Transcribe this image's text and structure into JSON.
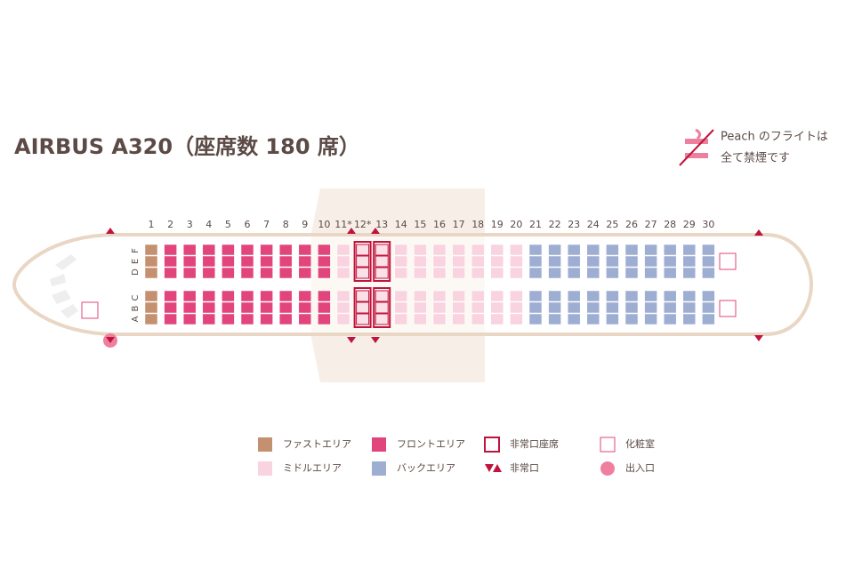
{
  "title": "AIRBUS A320（座席数 180 席）",
  "notice": [
    "Peach のフライトは",
    "全て禁煙です"
  ],
  "seat_letters": [
    "A",
    "B",
    "C",
    "D",
    "E",
    "F"
  ],
  "rows": [
    {
      "label": "1",
      "area": 0
    },
    {
      "label": "2",
      "area": 1
    },
    {
      "label": "3",
      "area": 1
    },
    {
      "label": "4",
      "area": 1
    },
    {
      "label": "5",
      "area": 1
    },
    {
      "label": "6",
      "area": 1
    },
    {
      "label": "7",
      "area": 1
    },
    {
      "label": "8",
      "area": 1
    },
    {
      "label": "9",
      "area": 1
    },
    {
      "label": "10",
      "area": 1
    },
    {
      "label": "11*",
      "area": 4
    },
    {
      "label": "12*",
      "area": 2
    },
    {
      "label": "13",
      "area": 2
    },
    {
      "label": "14",
      "area": 4
    },
    {
      "label": "15",
      "area": 4
    },
    {
      "label": "16",
      "area": 4
    },
    {
      "label": "17",
      "area": 4
    },
    {
      "label": "18",
      "area": 4
    },
    {
      "label": "19",
      "area": 4
    },
    {
      "label": "20",
      "area": 4
    },
    {
      "label": "21",
      "area": 5
    },
    {
      "label": "22",
      "area": 5
    },
    {
      "label": "23",
      "area": 5
    },
    {
      "label": "24",
      "area": 5
    },
    {
      "label": "25",
      "area": 5
    },
    {
      "label": "26",
      "area": 5
    },
    {
      "label": "27",
      "area": 5
    },
    {
      "label": "28",
      "area": 5
    },
    {
      "label": "29",
      "area": 5
    },
    {
      "label": "30",
      "area": 5
    }
  ],
  "legend": [
    {
      "label": "ファストエリア",
      "color": "#c4906f"
    },
    {
      "label": "フロントエリア",
      "color": "#e1457b"
    },
    {
      "label": "非常口座席",
      "color": "#c0143c"
    },
    {
      "label": "化粧室",
      "color": "#e1457b"
    },
    {
      "label": "ミドルエリア",
      "color": "#f9d3df"
    },
    {
      "label": "バックエリア",
      "color": "#9eaed3"
    },
    {
      "label": "非常口",
      "color": "#c0143c"
    },
    {
      "label": "出入口",
      "color": "#ef7f9f"
    }
  ]
}
